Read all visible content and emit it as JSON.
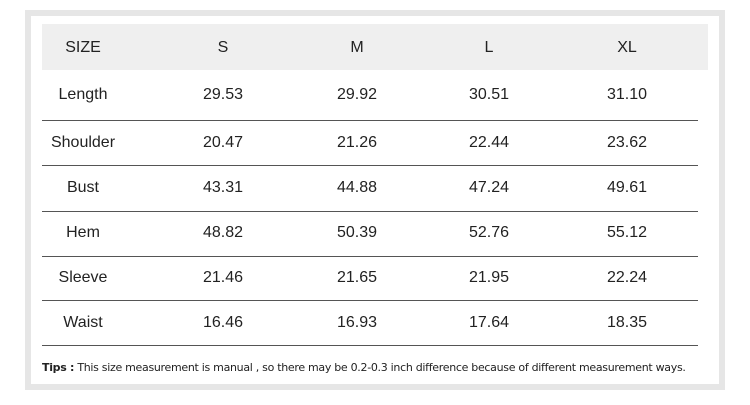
{
  "table": {
    "header": [
      "SIZE",
      "S",
      "M",
      "L",
      "XL"
    ],
    "rows": [
      [
        "Length",
        "29.53",
        "29.92",
        "30.51",
        "31.10"
      ],
      [
        "Shoulder",
        "20.47",
        "21.26",
        "22.44",
        "23.62"
      ],
      [
        "Bust",
        "43.31",
        "44.88",
        "47.24",
        "49.61"
      ],
      [
        "Hem",
        "48.82",
        "50.39",
        "52.76",
        "55.12"
      ],
      [
        "Sleeve",
        "21.46",
        "21.65",
        "21.95",
        "22.24"
      ],
      [
        "Waist",
        "16.46",
        "16.93",
        "17.64",
        "18.35"
      ]
    ]
  },
  "tips": {
    "label": "Tips :",
    "text": "This size measurement is manual , so there may be 0.2-0.3 inch difference because of different measurement ways."
  }
}
